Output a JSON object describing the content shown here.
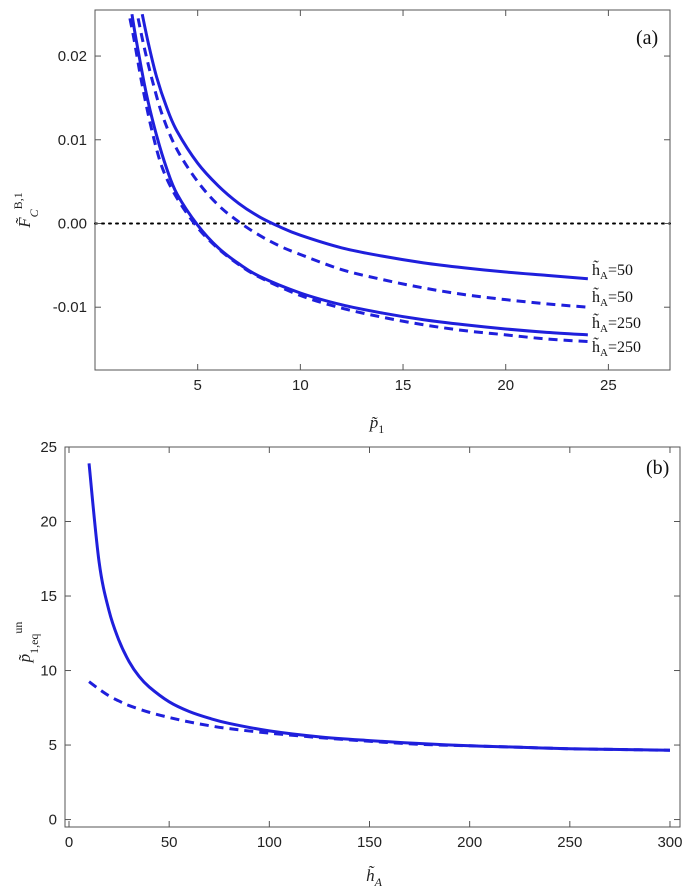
{
  "chart_data": [
    {
      "type": "line",
      "panel_label": "(a)",
      "title": "",
      "xlabel": "p̃",
      "xlabel_sub": "1",
      "ylabel": "F̃",
      "ylabel_sub": "C",
      "ylabel_sup": "B,1",
      "xlim": [
        0,
        28
      ],
      "ylim": [
        -0.0175,
        0.0255
      ],
      "x_ticks": [
        5,
        10,
        15,
        20,
        25
      ],
      "x_tick_labels": [
        "5",
        "10",
        "15",
        "20",
        "25"
      ],
      "y_ticks": [
        -0.01,
        0.0,
        0.01,
        0.02
      ],
      "y_tick_labels": [
        "-0.01",
        "0.00",
        "0.01",
        "0.02"
      ],
      "reference_line": {
        "y": 0.0,
        "style": "dotted"
      },
      "series": [
        {
          "name": "h̃A=50 (solid)",
          "style": "solid",
          "color": "#1f1fdc",
          "x": [
            2.3,
            2.6,
            3,
            3.5,
            4,
            5,
            6,
            7,
            8,
            9,
            10,
            12,
            14,
            16,
            18,
            20,
            22,
            24
          ],
          "y": [
            0.025,
            0.0215,
            0.0175,
            0.0138,
            0.011,
            0.0072,
            0.0045,
            0.0024,
            0.0008,
            -0.0004,
            -0.0014,
            -0.0029,
            -0.0039,
            -0.0047,
            -0.0053,
            -0.0058,
            -0.0062,
            -0.0066
          ]
        },
        {
          "name": "h̃A=50 (dashed)",
          "style": "dashed",
          "color": "#1f1fdc",
          "x": [
            2.1,
            2.4,
            2.8,
            3.3,
            4,
            5,
            6,
            7,
            8,
            9,
            10,
            12,
            14,
            16,
            18,
            20,
            22,
            24
          ],
          "y": [
            0.0245,
            0.021,
            0.017,
            0.0128,
            0.0088,
            0.005,
            0.0022,
            0.0002,
            -0.0014,
            -0.0027,
            -0.0037,
            -0.0055,
            -0.0067,
            -0.0077,
            -0.0085,
            -0.0091,
            -0.0096,
            -0.01
          ]
        },
        {
          "name": "h̃A=250 (solid)",
          "style": "solid",
          "color": "#1f1fdc",
          "x": [
            1.8,
            2,
            2.5,
            3,
            3.5,
            4,
            5,
            6,
            7,
            8,
            10,
            12,
            14,
            16,
            18,
            20,
            22,
            24
          ],
          "y": [
            0.025,
            0.022,
            0.0155,
            0.0105,
            0.0065,
            0.0035,
            -0.0002,
            -0.0029,
            -0.0048,
            -0.0063,
            -0.0083,
            -0.0097,
            -0.0107,
            -0.0115,
            -0.0121,
            -0.0126,
            -0.013,
            -0.0133
          ]
        },
        {
          "name": "h̃A=250 (dashed)",
          "style": "dashed",
          "color": "#1f1fdc",
          "x": [
            1.7,
            1.9,
            2.3,
            2.8,
            3.3,
            4,
            5,
            6,
            7,
            8,
            10,
            12,
            14,
            16,
            18,
            20,
            22,
            24
          ],
          "y": [
            0.0245,
            0.022,
            0.0165,
            0.0108,
            0.0065,
            0.003,
            -0.0005,
            -0.003,
            -0.0049,
            -0.0064,
            -0.0086,
            -0.0101,
            -0.0112,
            -0.0121,
            -0.0128,
            -0.0133,
            -0.0138,
            -0.0141
          ]
        }
      ],
      "curve_labels": [
        {
          "text_main": "h̃",
          "text_sub": "A",
          "text_val": "=50",
          "at_y": -0.0066
        },
        {
          "text_main": "h̃",
          "text_sub": "A",
          "text_val": "=50",
          "at_y": -0.01
        },
        {
          "text_main": "h̃",
          "text_sub": "A",
          "text_val": "=250",
          "at_y": -0.0131
        },
        {
          "text_main": "h̃",
          "text_sub": "A",
          "text_val": "=250",
          "at_y": -0.016
        }
      ]
    },
    {
      "type": "line",
      "panel_label": "(b)",
      "title": "",
      "xlabel": "h̃",
      "xlabel_sub": "A",
      "ylabel": "p̃",
      "ylabel_sub": "1,eq",
      "ylabel_sup": "un",
      "xlim": [
        -2,
        305
      ],
      "ylim": [
        -0.5,
        25
      ],
      "x_ticks": [
        0,
        50,
        100,
        150,
        200,
        250,
        300
      ],
      "x_tick_labels": [
        "0",
        "50",
        "100",
        "150",
        "200",
        "250",
        "300"
      ],
      "y_ticks": [
        0,
        5,
        10,
        15,
        20,
        25
      ],
      "y_tick_labels": [
        "0",
        "5",
        "10",
        "15",
        "20",
        "25"
      ],
      "series": [
        {
          "name": "solid",
          "style": "solid",
          "color": "#1f1fdc",
          "x": [
            10,
            15,
            20,
            25,
            30,
            35,
            40,
            50,
            60,
            70,
            80,
            100,
            125,
            150,
            175,
            200,
            225,
            250,
            275,
            300
          ],
          "y": [
            23.9,
            17.3,
            14.0,
            12.0,
            10.6,
            9.6,
            8.9,
            7.9,
            7.25,
            6.8,
            6.45,
            5.95,
            5.55,
            5.3,
            5.1,
            4.95,
            4.85,
            4.75,
            4.7,
            4.65
          ]
        },
        {
          "name": "dashed",
          "style": "dashed",
          "color": "#1f1fdc",
          "x": [
            10,
            15,
            20,
            25,
            30,
            40,
            50,
            60,
            70,
            80,
            100,
            125,
            150,
            175,
            200,
            225,
            250,
            275,
            300
          ],
          "y": [
            9.25,
            8.75,
            8.3,
            7.95,
            7.65,
            7.2,
            6.85,
            6.55,
            6.3,
            6.1,
            5.8,
            5.5,
            5.25,
            5.05,
            4.95,
            4.85,
            4.75,
            4.7,
            4.65
          ]
        }
      ]
    }
  ]
}
